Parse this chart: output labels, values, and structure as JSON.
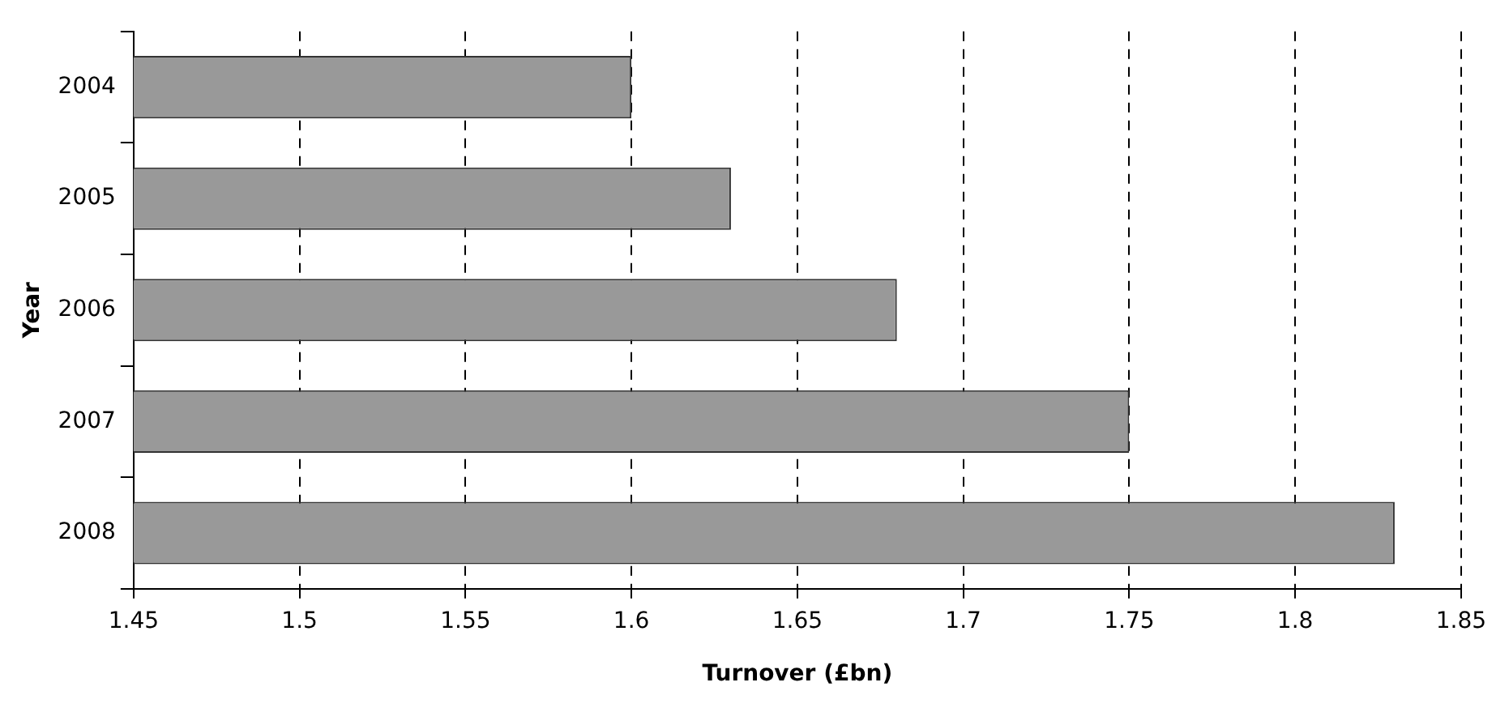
{
  "chart_data": {
    "type": "bar",
    "orientation": "horizontal",
    "xlabel": "Turnover (£bn)",
    "ylabel": "Year",
    "categories": [
      "2004",
      "2005",
      "2006",
      "2007",
      "2008"
    ],
    "values": [
      1.6,
      1.63,
      1.68,
      1.75,
      1.83
    ],
    "color": "#999999",
    "xlim": [
      1.45,
      1.85
    ],
    "xticks": [
      1.45,
      1.5,
      1.55,
      1.6,
      1.65,
      1.7,
      1.75,
      1.8,
      1.85
    ],
    "grid": "x",
    "legend": false
  }
}
